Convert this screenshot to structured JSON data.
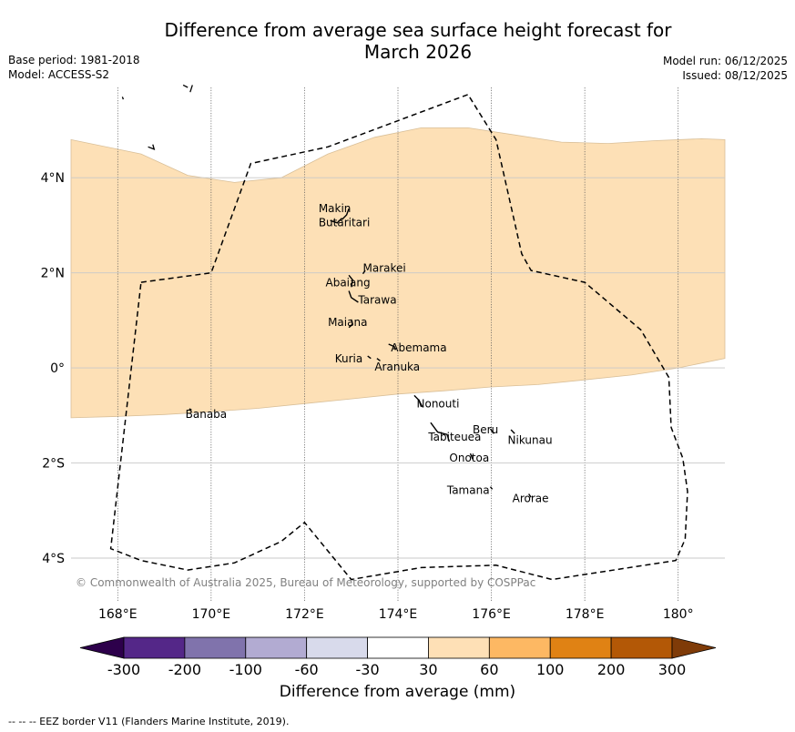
{
  "title": {
    "line1": "Difference from average sea surface height forecast for",
    "line2": "March 2026"
  },
  "meta": {
    "base_period": "Base period: 1981-2018",
    "model": "Model: ACCESS-S2",
    "model_run": "Model run: 06/12/2025",
    "issued": "Issued: 08/12/2025"
  },
  "map": {
    "lon_range": [
      167,
      181
    ],
    "lat_range": [
      -4.9,
      5.9
    ],
    "lon_ticks": [
      {
        "value": 168,
        "label": "168°E"
      },
      {
        "value": 170,
        "label": "170°E"
      },
      {
        "value": 172,
        "label": "172°E"
      },
      {
        "value": 174,
        "label": "174°E"
      },
      {
        "value": 176,
        "label": "176°E"
      },
      {
        "value": 178,
        "label": "178°E"
      },
      {
        "value": 180,
        "label": "180°"
      }
    ],
    "lat_ticks": [
      {
        "value": 4,
        "label": "4°N"
      },
      {
        "value": 2,
        "label": "2°N"
      },
      {
        "value": 0,
        "label": "0°"
      },
      {
        "value": -2,
        "label": "2°S"
      },
      {
        "value": -4,
        "label": "4°S"
      }
    ],
    "anomaly_band": {
      "category": "30 to 60 mm",
      "color": "#fde0b6",
      "north_edge": [
        [
          167,
          4.8
        ],
        [
          168,
          4.6
        ],
        [
          168.5,
          4.5
        ],
        [
          169.5,
          4.05
        ],
        [
          170.5,
          3.9
        ],
        [
          171.5,
          4.0
        ],
        [
          172.5,
          4.5
        ],
        [
          173.5,
          4.85
        ],
        [
          174.5,
          5.05
        ],
        [
          175.5,
          5.05
        ],
        [
          176.5,
          4.9
        ],
        [
          177.5,
          4.75
        ],
        [
          178.5,
          4.72
        ],
        [
          179.5,
          4.78
        ],
        [
          180.5,
          4.82
        ],
        [
          181,
          4.8
        ]
      ],
      "south_edge": [
        [
          181,
          0.2
        ],
        [
          180,
          0.0
        ],
        [
          179,
          -0.15
        ],
        [
          178,
          -0.25
        ],
        [
          177,
          -0.35
        ],
        [
          176,
          -0.4
        ],
        [
          175,
          -0.48
        ],
        [
          174,
          -0.55
        ],
        [
          173,
          -0.65
        ],
        [
          172,
          -0.75
        ],
        [
          171,
          -0.85
        ],
        [
          170,
          -0.92
        ],
        [
          169,
          -0.98
        ],
        [
          168,
          -1.02
        ],
        [
          167,
          -1.05
        ]
      ]
    },
    "eez_border": [
      [
        168.5,
        1.8
      ],
      [
        170,
        2
      ],
      [
        170.85,
        4.3
      ],
      [
        172.5,
        4.65
      ],
      [
        175.5,
        5.75
      ],
      [
        176.1,
        4.8
      ],
      [
        176.65,
        2.4
      ],
      [
        176.85,
        2.05
      ],
      [
        178,
        1.8
      ],
      [
        179.2,
        0.8
      ],
      [
        179.8,
        -0.2
      ],
      [
        179.85,
        -1.25
      ],
      [
        180.1,
        -1.9
      ],
      [
        180.2,
        -2.6
      ],
      [
        180.15,
        -3.6
      ],
      [
        179.95,
        -4.05
      ],
      [
        177.3,
        -4.45
      ],
      [
        176.1,
        -4.15
      ],
      [
        174.5,
        -4.2
      ],
      [
        173,
        -4.45
      ],
      [
        172,
        -3.25
      ],
      [
        171.5,
        -3.65
      ],
      [
        170.5,
        -4.1
      ],
      [
        169.5,
        -4.25
      ],
      [
        168.5,
        -4.05
      ],
      [
        167.85,
        -3.8
      ],
      [
        168.5,
        1.8
      ]
    ],
    "islands": [
      {
        "label": "Makin",
        "lon": 172.3,
        "lat": 3.28,
        "shape": [
          [
            172.95,
            3.35
          ],
          [
            172.9,
            3.22
          ],
          [
            172.8,
            3.12
          ]
        ]
      },
      {
        "label": "Butaritari",
        "lon": 172.3,
        "lat": 2.98,
        "shape": [
          [
            172.8,
            3.15
          ],
          [
            172.7,
            3.05
          ],
          [
            172.55,
            3.1
          ]
        ]
      },
      {
        "label": "Marakei",
        "lon": 173.25,
        "lat": 2.02,
        "shape": [
          [
            173.3,
            2.05
          ],
          [
            173.25,
            1.98
          ]
        ]
      },
      {
        "label": "Abaiang",
        "lon": 172.45,
        "lat": 1.72,
        "shape": [
          [
            172.95,
            1.95
          ],
          [
            173.03,
            1.85
          ],
          [
            173.0,
            1.7
          ]
        ]
      },
      {
        "label": "Tarawa",
        "lon": 173.15,
        "lat": 1.35,
        "shape": [
          [
            172.95,
            1.62
          ],
          [
            173.0,
            1.48
          ],
          [
            173.15,
            1.38
          ]
        ]
      },
      {
        "label": "Maiana",
        "lon": 172.5,
        "lat": 0.88,
        "shape": [
          [
            173.0,
            1.02
          ],
          [
            173.03,
            0.92
          ],
          [
            172.95,
            0.85
          ]
        ]
      },
      {
        "label": "Abemama",
        "lon": 173.85,
        "lat": 0.35,
        "shape": [
          [
            173.8,
            0.5
          ],
          [
            173.92,
            0.45
          ],
          [
            173.95,
            0.38
          ]
        ]
      },
      {
        "label": "Kuria",
        "lon": 172.65,
        "lat": 0.12,
        "shape": [
          [
            173.35,
            0.25
          ],
          [
            173.42,
            0.2
          ]
        ]
      },
      {
        "label": "Aranuka",
        "lon": 173.5,
        "lat": -0.06,
        "shape": [
          [
            173.55,
            0.2
          ],
          [
            173.62,
            0.15
          ]
        ]
      },
      {
        "label": "Nonouti",
        "lon": 174.4,
        "lat": -0.83,
        "shape": [
          [
            174.35,
            -0.58
          ],
          [
            174.45,
            -0.68
          ],
          [
            174.5,
            -0.82
          ]
        ]
      },
      {
        "label": "Tabiteuea",
        "lon": 174.65,
        "lat": -1.53,
        "shape": [
          [
            174.7,
            -1.15
          ],
          [
            174.85,
            -1.35
          ],
          [
            175.05,
            -1.4
          ],
          [
            175.1,
            -1.55
          ]
        ]
      },
      {
        "label": "Beru",
        "lon": 175.6,
        "lat": -1.38,
        "shape": [
          [
            175.98,
            -1.28
          ],
          [
            176.05,
            -1.38
          ]
        ]
      },
      {
        "label": "Nikunau",
        "lon": 176.35,
        "lat": -1.6,
        "shape": [
          [
            176.42,
            -1.3
          ],
          [
            176.5,
            -1.38
          ]
        ]
      },
      {
        "label": "Onotoa",
        "lon": 175.1,
        "lat": -1.97,
        "shape": [
          [
            175.55,
            -1.8
          ],
          [
            175.6,
            -1.92
          ]
        ]
      },
      {
        "label": "Tamana",
        "lon": 175.05,
        "lat": -2.65,
        "shape": [
          [
            175.98,
            -2.5
          ],
          [
            176.02,
            -2.55
          ]
        ]
      },
      {
        "label": "Arorae",
        "lon": 176.45,
        "lat": -2.82,
        "shape": [
          [
            176.8,
            -2.65
          ],
          [
            176.85,
            -2.72
          ]
        ]
      },
      {
        "label": "Banaba",
        "lon": 169.45,
        "lat": -1.05,
        "shape": [
          [
            169.53,
            -0.86
          ],
          [
            169.58,
            -0.88
          ]
        ]
      }
    ],
    "fragments": [
      [
        [
          169.4,
          5.95
        ],
        [
          169.5,
          5.9
        ]
      ],
      [
        [
          169.6,
          5.95
        ],
        [
          169.55,
          5.8
        ]
      ],
      [
        [
          168.1,
          5.7
        ],
        [
          168.12,
          5.65
        ]
      ],
      [
        [
          168.65,
          4.65
        ],
        [
          168.78,
          4.6
        ],
        [
          168.75,
          4.7
        ]
      ]
    ],
    "copyright": "© Commonwealth of Australia 2025, Bureau of Meteorology, supported by COSPPac"
  },
  "colorbar": {
    "label": "Difference from average (mm)",
    "colors": [
      "#2d004b",
      "#542788",
      "#8073ac",
      "#b2abd2",
      "#d8daeb",
      "#ffffff",
      "#fee0b6",
      "#fdb863",
      "#e08214",
      "#b35806",
      "#7f3b08"
    ],
    "tick_labels": [
      "-300",
      "-200",
      "-100",
      "-60",
      "-30",
      "30",
      "60",
      "100",
      "200",
      "300"
    ]
  },
  "footer": "--  --  -- EEZ border V11 (Flanders Marine Institute, 2019)."
}
